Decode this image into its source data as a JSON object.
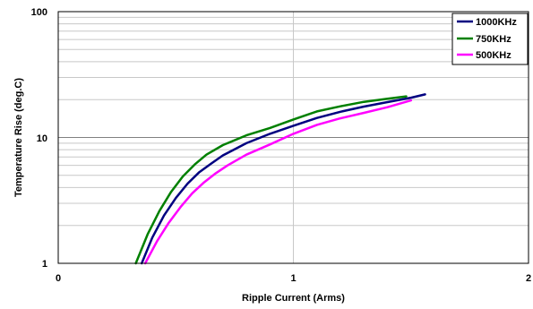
{
  "chart_data": {
    "type": "line",
    "title": "",
    "xlabel": "Ripple Current (Arms)",
    "ylabel": "Temperature Rise (deg.C)",
    "xlim": [
      0,
      2
    ],
    "ylim": [
      1,
      100
    ],
    "y_scale": "log",
    "x_ticks": [
      "0",
      "1",
      "2"
    ],
    "y_ticks": [
      "1",
      "10",
      "100"
    ],
    "grid": true,
    "legend_position": "top-right",
    "series": [
      {
        "name": "1000KHz",
        "color": "#000080",
        "points": [
          [
            0.355,
            1.0
          ],
          [
            0.4,
            1.6
          ],
          [
            0.45,
            2.4
          ],
          [
            0.5,
            3.3
          ],
          [
            0.55,
            4.3
          ],
          [
            0.6,
            5.3
          ],
          [
            0.65,
            6.2
          ],
          [
            0.7,
            7.2
          ],
          [
            0.8,
            9.0
          ],
          [
            0.9,
            10.7
          ],
          [
            1.0,
            12.4
          ],
          [
            1.1,
            14.3
          ],
          [
            1.2,
            16.0
          ],
          [
            1.3,
            17.6
          ],
          [
            1.4,
            19.1
          ],
          [
            1.5,
            20.7
          ],
          [
            1.56,
            22.0
          ]
        ]
      },
      {
        "name": "750KHz",
        "color": "#008000",
        "points": [
          [
            0.33,
            1.0
          ],
          [
            0.38,
            1.7
          ],
          [
            0.43,
            2.6
          ],
          [
            0.48,
            3.7
          ],
          [
            0.53,
            4.9
          ],
          [
            0.58,
            6.1
          ],
          [
            0.63,
            7.3
          ],
          [
            0.7,
            8.7
          ],
          [
            0.8,
            10.4
          ],
          [
            0.9,
            11.9
          ],
          [
            1.0,
            13.9
          ],
          [
            1.1,
            16.1
          ],
          [
            1.2,
            17.7
          ],
          [
            1.3,
            19.2
          ],
          [
            1.4,
            20.3
          ],
          [
            1.48,
            21.2
          ]
        ]
      },
      {
        "name": "500KHz",
        "color": "#FF00FF",
        "points": [
          [
            0.37,
            1.0
          ],
          [
            0.42,
            1.5
          ],
          [
            0.47,
            2.1
          ],
          [
            0.52,
            2.8
          ],
          [
            0.57,
            3.6
          ],
          [
            0.62,
            4.4
          ],
          [
            0.67,
            5.2
          ],
          [
            0.72,
            6.0
          ],
          [
            0.8,
            7.3
          ],
          [
            0.9,
            8.8
          ],
          [
            1.0,
            10.7
          ],
          [
            1.1,
            12.6
          ],
          [
            1.2,
            14.2
          ],
          [
            1.3,
            15.7
          ],
          [
            1.4,
            17.4
          ],
          [
            1.5,
            19.7
          ]
        ]
      }
    ]
  }
}
